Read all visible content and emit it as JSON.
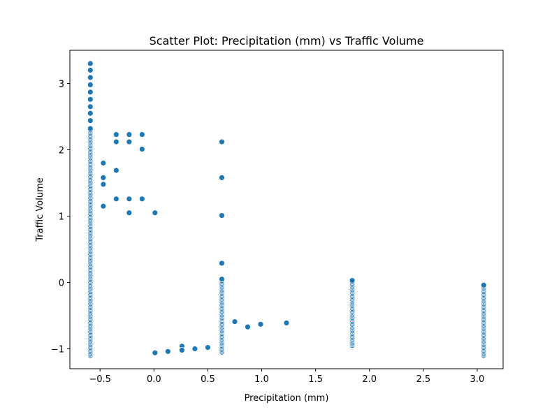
{
  "chart_data": {
    "type": "scatter",
    "title": "Scatter Plot: Precipitation (mm) vs Traffic Volume",
    "xlabel": "Precipitation (mm)",
    "ylabel": "Traffic Volume",
    "xlim": [
      -0.78,
      3.24
    ],
    "ylim": [
      -1.3,
      3.5
    ],
    "xticks": [
      -0.5,
      0.0,
      0.5,
      1.0,
      1.5,
      2.0,
      2.5,
      3.0
    ],
    "xtick_labels": [
      "−0.5",
      "0.0",
      "0.5",
      "1.0",
      "1.5",
      "2.0",
      "2.5",
      "3.0"
    ],
    "yticks": [
      -1,
      0,
      1,
      2,
      3
    ],
    "ytick_labels": [
      "−1",
      "0",
      "1",
      "2",
      "3"
    ],
    "grid": false,
    "marker_color": "#1f77b4",
    "columns": [
      {
        "x": -0.59,
        "y_min": -1.1,
        "y_max": 2.33,
        "step": 0.02
      },
      {
        "x": 0.63,
        "y_min": -1.05,
        "y_max": 0.06,
        "step": 0.02
      },
      {
        "x": 1.84,
        "y_min": -0.95,
        "y_max": 0.04,
        "step": 0.02
      },
      {
        "x": 3.06,
        "y_min": -1.1,
        "y_max": -0.04,
        "step": 0.02
      }
    ],
    "points": [
      {
        "x": -0.59,
        "y": 3.3
      },
      {
        "x": -0.59,
        "y": 3.2
      },
      {
        "x": -0.59,
        "y": 3.09
      },
      {
        "x": -0.59,
        "y": 2.98
      },
      {
        "x": -0.59,
        "y": 2.87
      },
      {
        "x": -0.59,
        "y": 2.76
      },
      {
        "x": -0.59,
        "y": 2.65
      },
      {
        "x": -0.59,
        "y": 2.55
      },
      {
        "x": -0.59,
        "y": 2.44
      },
      {
        "x": -0.47,
        "y": 1.8
      },
      {
        "x": -0.47,
        "y": 1.58
      },
      {
        "x": -0.47,
        "y": 1.48
      },
      {
        "x": -0.47,
        "y": 1.15
      },
      {
        "x": -0.35,
        "y": 2.23
      },
      {
        "x": -0.35,
        "y": 2.12
      },
      {
        "x": -0.35,
        "y": 1.69
      },
      {
        "x": -0.35,
        "y": 1.26
      },
      {
        "x": -0.23,
        "y": 2.23
      },
      {
        "x": -0.23,
        "y": 2.12
      },
      {
        "x": -0.23,
        "y": 1.26
      },
      {
        "x": -0.23,
        "y": 1.05
      },
      {
        "x": -0.11,
        "y": 2.23
      },
      {
        "x": -0.11,
        "y": 2.01
      },
      {
        "x": -0.11,
        "y": 1.26
      },
      {
        "x": 0.01,
        "y": 1.05
      },
      {
        "x": 0.01,
        "y": -1.06
      },
      {
        "x": 0.13,
        "y": -1.04
      },
      {
        "x": 0.26,
        "y": -0.96
      },
      {
        "x": 0.26,
        "y": -1.02
      },
      {
        "x": 0.38,
        "y": -1.0
      },
      {
        "x": 0.5,
        "y": -0.98
      },
      {
        "x": 0.63,
        "y": 2.12
      },
      {
        "x": 0.63,
        "y": 1.58
      },
      {
        "x": 0.63,
        "y": 1.01
      },
      {
        "x": 0.63,
        "y": 0.29
      },
      {
        "x": 0.75,
        "y": -0.59
      },
      {
        "x": 0.87,
        "y": -0.67
      },
      {
        "x": 0.99,
        "y": -0.63
      },
      {
        "x": 1.23,
        "y": -0.61
      }
    ]
  }
}
